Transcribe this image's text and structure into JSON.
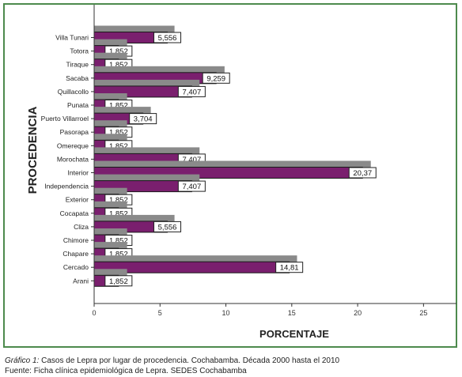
{
  "chart_data": {
    "type": "bar",
    "orientation": "horizontal",
    "xlabel": "PORCENTAJE",
    "ylabel": "PROCEDENCIA",
    "xlim": [
      0,
      27.5
    ],
    "xticks": [
      0,
      5,
      10,
      15,
      20,
      25
    ],
    "grid": false,
    "legend": "none",
    "categories": [
      "Villa Tunari",
      "Totora",
      "Tiraque",
      "Sacaba",
      "Quillacollo",
      "Punata",
      "Puerto Villarroel",
      "Pasorapa",
      "Omereque",
      "Morochata",
      "Interior",
      "Independencia",
      "Exterior",
      "Cocapata",
      "Cliza",
      "Chimore",
      "Chapare",
      "Cercado",
      "Arani"
    ],
    "series": [
      {
        "values": [
          6.1,
          2.5,
          2.5,
          9.9,
          8.0,
          2.5,
          4.3,
          2.5,
          2.5,
          8.0,
          21.0,
          8.0,
          2.5,
          2.5,
          6.1,
          2.5,
          2.5,
          15.4,
          2.5
        ]
      },
      {
        "values": [
          5.556,
          1.852,
          1.852,
          9.259,
          7.407,
          1.852,
          3.704,
          1.852,
          1.852,
          7.407,
          20.37,
          7.407,
          1.852,
          1.852,
          5.556,
          1.852,
          1.852,
          14.81,
          1.852
        ],
        "labels": [
          "5,556",
          "1,852",
          "1,852",
          "9,259",
          "7,407",
          "1,852",
          "3,704",
          "1,852",
          "1,852",
          "7,407",
          "20,37",
          "7,407",
          "1,852",
          "1,852",
          "5,556",
          "1,852",
          "1,852",
          "14,81",
          "1,852"
        ]
      }
    ],
    "colors": {
      "back_series": "#8a8a8a",
      "front_series": "#7a1f6e",
      "axis": "#333333"
    }
  },
  "caption": {
    "figure_label": "Gráfico 1:",
    "figure_text": "Casos de Lepra por lugar de procedencia. Cochabamba. Década 2000 hasta el 2010",
    "source_text": "Fuente: Ficha clínica epidemiológica de Lepra. SEDES Cochabamba"
  },
  "frame_color": "#4d8a4d"
}
